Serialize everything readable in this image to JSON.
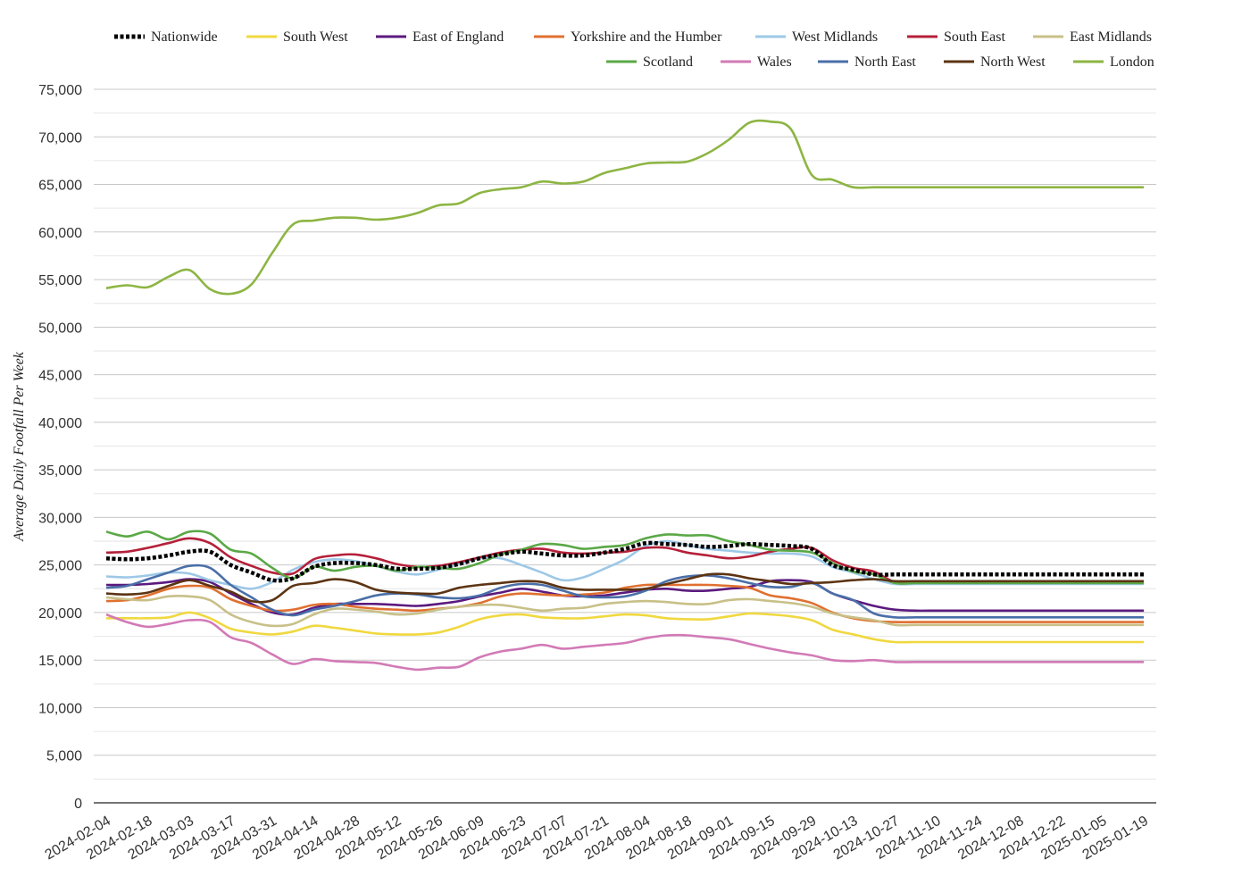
{
  "chart_data": {
    "type": "line",
    "title": "",
    "xlabel": "",
    "ylabel": "Average Daily Footfall Per Week",
    "ylim": [
      0,
      75000
    ],
    "yticks": [
      "0",
      "5,000",
      "10,000",
      "15,000",
      "20,000",
      "25,000",
      "30,000",
      "35,000",
      "40,000",
      "45,000",
      "50,000",
      "55,000",
      "60,000",
      "65,000",
      "70,000",
      "75,000"
    ],
    "grid": true,
    "legend_position": "top",
    "x": [
      "2024-02-04",
      "2024-02-11",
      "2024-02-18",
      "2024-02-25",
      "2024-03-03",
      "2024-03-10",
      "2024-03-17",
      "2024-03-24",
      "2024-03-31",
      "2024-04-07",
      "2024-04-14",
      "2024-04-21",
      "2024-04-28",
      "2024-05-05",
      "2024-05-12",
      "2024-05-19",
      "2024-05-26",
      "2024-06-02",
      "2024-06-09",
      "2024-06-16",
      "2024-06-23",
      "2024-06-30",
      "2024-07-07",
      "2024-07-14",
      "2024-07-21",
      "2024-07-28",
      "2024-08-04",
      "2024-08-11",
      "2024-08-18",
      "2024-08-25",
      "2024-09-01",
      "2024-09-08",
      "2024-09-15",
      "2024-09-22",
      "2024-09-29",
      "2024-10-06",
      "2024-10-13",
      "2024-10-20",
      "2024-10-27",
      "2024-11-03",
      "2024-11-10",
      "2024-11-17",
      "2024-11-24",
      "2024-12-01",
      "2024-12-08",
      "2024-12-15",
      "2024-12-22",
      "2024-12-29",
      "2025-01-05",
      "2025-01-12",
      "2025-01-19"
    ],
    "x_tick_labels": [
      "2024-02-04",
      "2024-02-18",
      "2024-03-03",
      "2024-03-17",
      "2024-03-31",
      "2024-04-14",
      "2024-04-28",
      "2024-05-12",
      "2024-05-26",
      "2024-06-09",
      "2024-06-23",
      "2024-07-07",
      "2024-07-21",
      "2024-08-04",
      "2024-08-18",
      "2024-09-01",
      "2024-09-15",
      "2024-09-29",
      "2024-10-13",
      "2024-10-27",
      "2024-11-10",
      "2024-11-24",
      "2024-12-08",
      "2024-12-22",
      "2025-01-05",
      "2025-01-19"
    ],
    "series": [
      {
        "name": "London",
        "color": "#8db543",
        "dashed": false,
        "values": [
          54100,
          54400,
          54200,
          55300,
          56000,
          54000,
          53500,
          54500,
          57800,
          60800,
          61200,
          61500,
          61500,
          61300,
          61500,
          62000,
          62800,
          63000,
          64100,
          64500,
          64700,
          65300,
          65100,
          65300,
          66200,
          66700,
          67200,
          67300,
          67400,
          68300,
          69700,
          71500,
          71600,
          70800,
          66000,
          65500,
          64700,
          64700,
          64700,
          64700,
          64700,
          64700,
          64700,
          64700,
          64700,
          64700,
          64700,
          64700,
          64700,
          64700,
          64700
        ]
      },
      {
        "name": "Nationwide",
        "color": "#000000",
        "dashed": true,
        "values": [
          25700,
          25600,
          25700,
          26000,
          26400,
          26400,
          25000,
          24200,
          23400,
          23600,
          24800,
          25200,
          25200,
          25000,
          24600,
          24600,
          24700,
          25100,
          25700,
          26100,
          26400,
          26200,
          26000,
          26000,
          26300,
          26700,
          27300,
          27200,
          27100,
          26900,
          27000,
          27200,
          27100,
          27000,
          26700,
          25000,
          24500,
          24000,
          24000,
          24000,
          24000,
          24000,
          24000,
          24000,
          24000,
          24000,
          24000,
          24000,
          24000,
          24000,
          24000
        ]
      },
      {
        "name": "South West",
        "color": "#f0d840",
        "dashed": false,
        "values": [
          19400,
          19400,
          19400,
          19500,
          20000,
          19400,
          18300,
          17900,
          17700,
          18000,
          18600,
          18400,
          18100,
          17800,
          17700,
          17700,
          17900,
          18500,
          19300,
          19700,
          19800,
          19500,
          19400,
          19400,
          19600,
          19800,
          19700,
          19400,
          19300,
          19300,
          19600,
          19900,
          19800,
          19600,
          19200,
          18200,
          17700,
          17200,
          16900,
          16900,
          16900,
          16900,
          16900,
          16900,
          16900,
          16900,
          16900,
          16900,
          16900,
          16900,
          16900
        ]
      },
      {
        "name": "East of England",
        "color": "#5b1a7e",
        "dashed": false,
        "values": [
          22900,
          22900,
          23000,
          23200,
          23500,
          23200,
          22000,
          20900,
          20000,
          19800,
          20500,
          20900,
          20900,
          20900,
          20800,
          20700,
          20900,
          21200,
          21700,
          22100,
          22500,
          22200,
          21800,
          21700,
          21800,
          22100,
          22400,
          22500,
          22300,
          22300,
          22500,
          22700,
          23300,
          23400,
          23200,
          22000,
          21300,
          20700,
          20300,
          20200,
          20200,
          20200,
          20200,
          20200,
          20200,
          20200,
          20200,
          20200,
          20200,
          20200,
          20200
        ]
      },
      {
        "name": "Yorkshire and the Humber",
        "color": "#e07030",
        "dashed": false,
        "values": [
          21200,
          21300,
          21800,
          22500,
          22800,
          22600,
          21400,
          20700,
          20200,
          20300,
          20800,
          20900,
          20600,
          20400,
          20300,
          20200,
          20400,
          20600,
          21000,
          21700,
          22000,
          21900,
          21800,
          21900,
          22100,
          22600,
          22900,
          22900,
          22900,
          22900,
          22800,
          22600,
          21800,
          21500,
          21000,
          20000,
          19400,
          19100,
          19000,
          19000,
          19000,
          19000,
          19000,
          19000,
          19000,
          19000,
          19000,
          19000,
          19000,
          19000,
          19000
        ]
      },
      {
        "name": "West Midlands",
        "color": "#9dc8e6",
        "dashed": false,
        "values": [
          23800,
          23700,
          23900,
          24200,
          24100,
          23400,
          22900,
          22500,
          23200,
          24500,
          25300,
          25600,
          25400,
          24900,
          24300,
          24000,
          24500,
          25100,
          25700,
          25700,
          25000,
          24200,
          23400,
          23700,
          24600,
          25600,
          27000,
          27500,
          27100,
          26700,
          26500,
          26300,
          26200,
          26200,
          25900,
          24800,
          24200,
          23500,
          23000,
          23000,
          23000,
          23000,
          23000,
          23000,
          23000,
          23000,
          23000,
          23000,
          23000,
          23000,
          23000
        ]
      },
      {
        "name": "South East",
        "color": "#b5203a",
        "dashed": false,
        "values": [
          26300,
          26400,
          26800,
          27300,
          27800,
          27300,
          25800,
          24900,
          24200,
          24100,
          25600,
          26000,
          26100,
          25700,
          25100,
          24800,
          24900,
          25300,
          25800,
          26300,
          26600,
          26700,
          26300,
          26200,
          26300,
          26400,
          26800,
          26800,
          26300,
          26000,
          25700,
          25900,
          26400,
          26700,
          26800,
          25500,
          24700,
          24300,
          23200,
          23200,
          23200,
          23200,
          23200,
          23200,
          23200,
          23200,
          23200,
          23200,
          23200,
          23200,
          23200
        ]
      },
      {
        "name": "East Midlands",
        "color": "#c8c088",
        "dashed": false,
        "values": [
          21600,
          21400,
          21300,
          21700,
          21700,
          21300,
          19800,
          19000,
          18600,
          18800,
          19800,
          20400,
          20300,
          20100,
          19800,
          19900,
          20300,
          20600,
          20800,
          20800,
          20500,
          20200,
          20400,
          20500,
          20900,
          21100,
          21200,
          21100,
          20900,
          20900,
          21300,
          21400,
          21200,
          21000,
          20600,
          19900,
          19500,
          19200,
          18700,
          18700,
          18700,
          18700,
          18700,
          18700,
          18700,
          18700,
          18700,
          18700,
          18700,
          18700,
          18700
        ]
      },
      {
        "name": "Scotland",
        "color": "#5aa846",
        "dashed": false,
        "values": [
          28500,
          28000,
          28500,
          27700,
          28500,
          28300,
          26600,
          26200,
          24700,
          23600,
          24800,
          24400,
          24800,
          24900,
          24400,
          24800,
          24700,
          24600,
          25200,
          26100,
          26600,
          27200,
          27100,
          26700,
          26900,
          27100,
          27800,
          28200,
          28100,
          28100,
          27500,
          27100,
          26600,
          26500,
          26300,
          25200,
          24300,
          24000,
          23100,
          23100,
          23100,
          23100,
          23100,
          23100,
          23100,
          23100,
          23100,
          23100,
          23100,
          23100,
          23100
        ]
      },
      {
        "name": "Wales",
        "color": "#d27ab6",
        "dashed": false,
        "values": [
          19800,
          19000,
          18500,
          18800,
          19200,
          19000,
          17400,
          16800,
          15600,
          14600,
          15100,
          14900,
          14800,
          14700,
          14300,
          14000,
          14200,
          14300,
          15300,
          15900,
          16200,
          16600,
          16200,
          16400,
          16600,
          16800,
          17300,
          17600,
          17600,
          17400,
          17200,
          16700,
          16200,
          15800,
          15500,
          15000,
          14900,
          15000,
          14800,
          14800,
          14800,
          14800,
          14800,
          14800,
          14800,
          14800,
          14800,
          14800,
          14800,
          14800,
          14800
        ]
      },
      {
        "name": "North East",
        "color": "#4a6fa8",
        "dashed": false,
        "values": [
          22600,
          22800,
          23500,
          24200,
          24900,
          24700,
          22900,
          21600,
          20300,
          19700,
          20300,
          20700,
          21200,
          21800,
          22000,
          21900,
          21600,
          21500,
          21800,
          22600,
          23000,
          22900,
          22300,
          21700,
          21600,
          21700,
          22300,
          23300,
          23800,
          23900,
          23600,
          23100,
          22700,
          22700,
          23100,
          22000,
          21300,
          19900,
          19500,
          19500,
          19500,
          19500,
          19500,
          19500,
          19500,
          19500,
          19500,
          19500,
          19500,
          19500,
          19500
        ]
      },
      {
        "name": "North West",
        "color": "#5c3413",
        "dashed": false,
        "values": [
          22000,
          21900,
          22100,
          22800,
          23400,
          22800,
          22200,
          21200,
          21300,
          22800,
          23100,
          23500,
          23200,
          22400,
          22100,
          22000,
          22000,
          22600,
          22900,
          23100,
          23300,
          23200,
          22600,
          22400,
          22400,
          22400,
          22500,
          23000,
          23500,
          24000,
          24000,
          23600,
          23300,
          23000,
          23100,
          23200,
          23400,
          23500,
          23300,
          23300,
          23300,
          23300,
          23300,
          23300,
          23300,
          23300,
          23300,
          23300,
          23300,
          23300,
          23300
        ]
      }
    ]
  },
  "legend": {
    "row1": [
      "Nationwide",
      "South West",
      "East of England",
      "Yorkshire and the Humber",
      "West Midlands",
      "South East",
      "East Midlands"
    ],
    "row2": [
      "Scotland",
      "Wales",
      "North East",
      "North West",
      "London"
    ]
  }
}
